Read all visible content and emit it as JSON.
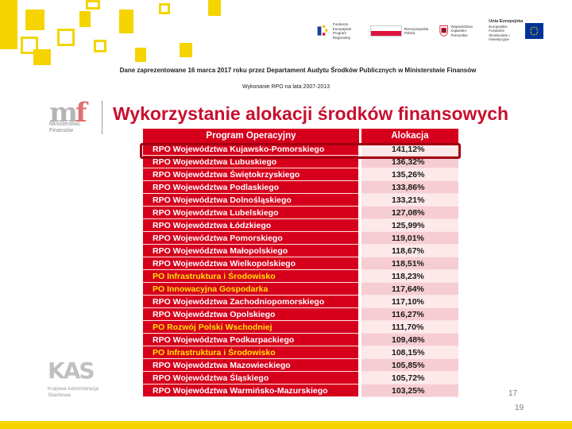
{
  "header": {
    "caption": "Dane zaprezentowane 16 marca 2017 roku przez Departament Audytu Środków Publicznych w Ministerstwie Finansów",
    "subcaption": "Wykonanie RPO na lata 2007-2013"
  },
  "logos": {
    "fe": [
      "Fundusze",
      "Europejskie",
      "Program Regionalny"
    ],
    "rp": [
      "Rzeczpospolita",
      "Polska"
    ],
    "woj": [
      "Województwo",
      "Kujawsko-Pomorskie"
    ],
    "ue": [
      "Unia Europejska",
      "Europejskie Fundusze",
      "Strukturalne i Inwestycyjne"
    ]
  },
  "mf_logo": {
    "mark_left": "m",
    "mark_right": "f",
    "text": [
      "Ministerstwo",
      "Finansów"
    ]
  },
  "title": "Wykorzystanie alokacji środków finansowych",
  "table": {
    "headers": [
      "Program Operacyjny",
      "Alokacja"
    ],
    "rows": [
      {
        "program": "RPO Województwa Kujawsko-Pomorskiego",
        "value": "141,12%"
      },
      {
        "program": "RPO Województwa Lubuskiego",
        "value": "136,32%"
      },
      {
        "program": "RPO Województwa Świętokrzyskiego",
        "value": "135,26%"
      },
      {
        "program": "RPO Województwa Podlaskiego",
        "value": "133,86%"
      },
      {
        "program": "RPO Województwa Dolnośląskiego",
        "value": "133,21%"
      },
      {
        "program": "RPO Województwa Lubelskiego",
        "value": "127,08%"
      },
      {
        "program": "RPO Województwa Łódzkiego",
        "value": "125,99%"
      },
      {
        "program": "RPO Województwa Pomorskiego",
        "value": "119,01%"
      },
      {
        "program": "RPO Województwa Małopolskiego",
        "value": "118,67%"
      },
      {
        "program": "RPO Województwa Wielkopolskiego",
        "value": "118,51%"
      },
      {
        "program": "PO Infrastruktura i Środowisko",
        "value": "118,23%"
      },
      {
        "program": "PO Innowacyjna Gospodarka",
        "value": "117,64%"
      },
      {
        "program": "RPO Województwa Zachodniopomorskiego",
        "value": "117,10%"
      },
      {
        "program": "RPO Województwa Opolskiego",
        "value": "116,27%"
      },
      {
        "program": "PO Rozwój Polski Wschodniej",
        "value": "111,70%"
      },
      {
        "program": "RPO Województwa Podkarpackiego",
        "value": "109,48%"
      },
      {
        "program": "PO Infrastruktura i Środowisko",
        "value": "108,15%"
      },
      {
        "program": "RPO Województwa Mazowieckiego",
        "value": "105,85%"
      },
      {
        "program": "RPO Województwa Śląskiego",
        "value": "105,72%"
      },
      {
        "program": "RPO Województwa Warmińsko-Mazurskiego",
        "value": "103,25%"
      }
    ]
  },
  "kas_logo": {
    "mark": "KAS",
    "text": [
      "Krajowa Administracja",
      "Skarbowa"
    ]
  },
  "page_number_inner": "17",
  "page_number_outer": "19",
  "colors": {
    "red": "#d6001c",
    "yellow": "#f5d400",
    "program_name_yellow": "#ffe500"
  }
}
